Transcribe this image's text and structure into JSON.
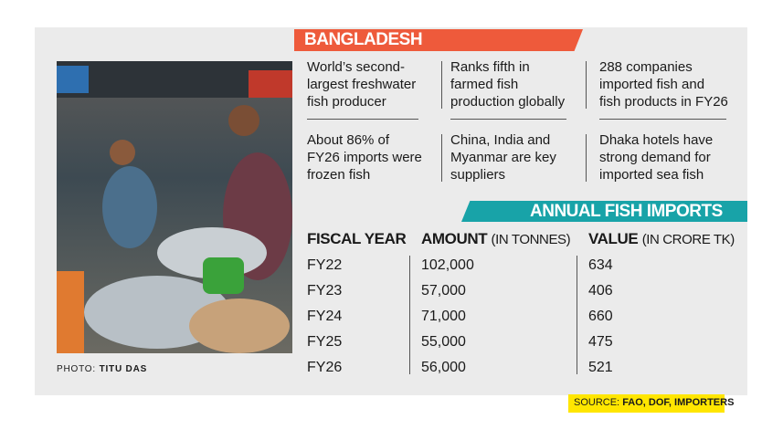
{
  "banner": "BANGLADESH",
  "facts": [
    [
      "World’s second-",
      "largest freshwater",
      "fish producer"
    ],
    [
      "Ranks fifth in",
      "farmed fish",
      "production globally"
    ],
    [
      "288 companies",
      "imported fish and",
      "fish products in FY26"
    ],
    [
      "About 86% of",
      "FY26 imports were",
      "frozen fish"
    ],
    [
      "China, India and",
      "Myanmar are key",
      "suppliers"
    ],
    [
      "Dhaka hotels have",
      "strong demand for",
      "imported sea fish"
    ]
  ],
  "imports_title": "ANNUAL FISH IMPORTS",
  "table": {
    "headers": [
      {
        "label": "FISCAL YEAR"
      },
      {
        "label": "AMOUNT",
        "unit": "(IN TONNES)"
      },
      {
        "label": "VALUE",
        "unit": "(IN CRORE TK)"
      }
    ],
    "rows": [
      [
        "FY22",
        "102,000",
        "634"
      ],
      [
        "FY23",
        "57,000",
        "406"
      ],
      [
        "FY24",
        "71,000",
        "660"
      ],
      [
        "FY25",
        "55,000",
        "475"
      ],
      [
        "FY26",
        "56,000",
        "521"
      ]
    ]
  },
  "photo_credit": {
    "label": "PHOTO:",
    "name": "TITU DAS"
  },
  "source": {
    "label": "SOURCE:",
    "text": "FAO, DOF, IMPORTERS"
  }
}
